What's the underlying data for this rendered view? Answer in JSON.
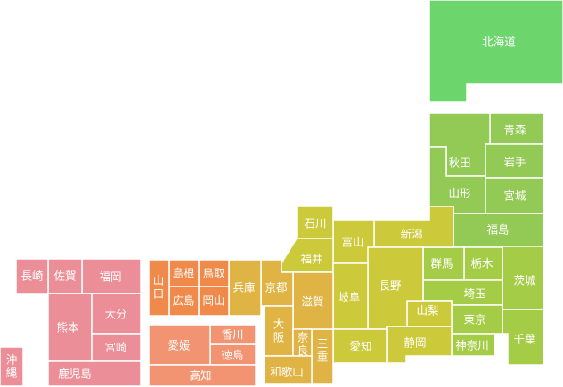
{
  "colors": {
    "hokkaido": "#6cd56c",
    "tohoku": "#93c955",
    "kanto": "#a4cc46",
    "chubu": "#ccc93a",
    "kinki": "#dfb445",
    "chugoku": "#ef8a4a",
    "shikoku": "#f29372",
    "kyushu": "#ec8e97"
  },
  "prefectures": [
    {
      "id": "hokkaido",
      "name": "北海道",
      "region": "hokkaido"
    },
    {
      "id": "aomori",
      "name": "青森",
      "region": "tohoku"
    },
    {
      "id": "akita",
      "name": "秋田",
      "region": "tohoku"
    },
    {
      "id": "iwate",
      "name": "岩手",
      "region": "tohoku"
    },
    {
      "id": "yamagata",
      "name": "山形",
      "region": "tohoku"
    },
    {
      "id": "miyagi",
      "name": "宮城",
      "region": "tohoku"
    },
    {
      "id": "fukushima",
      "name": "福島",
      "region": "tohoku"
    },
    {
      "id": "ibaraki",
      "name": "茨城",
      "region": "kanto"
    },
    {
      "id": "tochigi",
      "name": "栃木",
      "region": "kanto"
    },
    {
      "id": "gunma",
      "name": "群馬",
      "region": "kanto"
    },
    {
      "id": "saitama",
      "name": "埼玉",
      "region": "kanto"
    },
    {
      "id": "chiba",
      "name": "千葉",
      "region": "kanto"
    },
    {
      "id": "tokyo",
      "name": "東京",
      "region": "kanto"
    },
    {
      "id": "kanagawa",
      "name": "神奈川",
      "region": "kanto"
    },
    {
      "id": "niigata",
      "name": "新潟",
      "region": "chubu"
    },
    {
      "id": "toyama",
      "name": "富山",
      "region": "chubu"
    },
    {
      "id": "ishikawa",
      "name": "石川",
      "region": "chubu"
    },
    {
      "id": "fukui",
      "name": "福井",
      "region": "chubu"
    },
    {
      "id": "yamanashi",
      "name": "山梨",
      "region": "chubu"
    },
    {
      "id": "nagano",
      "name": "長野",
      "region": "chubu"
    },
    {
      "id": "gifu",
      "name": "岐阜",
      "region": "chubu"
    },
    {
      "id": "shizuoka",
      "name": "静岡",
      "region": "chubu"
    },
    {
      "id": "aichi",
      "name": "愛知",
      "region": "chubu"
    },
    {
      "id": "mie",
      "name": "三重",
      "region": "kinki"
    },
    {
      "id": "shiga",
      "name": "滋賀",
      "region": "kinki"
    },
    {
      "id": "kyoto",
      "name": "京都",
      "region": "kinki"
    },
    {
      "id": "osaka",
      "name": "大阪",
      "region": "kinki"
    },
    {
      "id": "hyogo",
      "name": "兵庫",
      "region": "kinki"
    },
    {
      "id": "nara",
      "name": "奈良",
      "region": "kinki"
    },
    {
      "id": "wakayama",
      "name": "和歌山",
      "region": "kinki"
    },
    {
      "id": "tottori",
      "name": "鳥取",
      "region": "chugoku"
    },
    {
      "id": "shimane",
      "name": "島根",
      "region": "chugoku"
    },
    {
      "id": "okayama",
      "name": "岡山",
      "region": "chugoku"
    },
    {
      "id": "hiroshima",
      "name": "広島",
      "region": "chugoku"
    },
    {
      "id": "yamaguchi",
      "name": "山口",
      "region": "chugoku"
    },
    {
      "id": "tokushima",
      "name": "徳島",
      "region": "shikoku"
    },
    {
      "id": "kagawa",
      "name": "香川",
      "region": "shikoku"
    },
    {
      "id": "ehime",
      "name": "愛媛",
      "region": "shikoku"
    },
    {
      "id": "kochi",
      "name": "高知",
      "region": "shikoku"
    },
    {
      "id": "fukuoka",
      "name": "福岡",
      "region": "kyushu"
    },
    {
      "id": "saga",
      "name": "佐賀",
      "region": "kyushu"
    },
    {
      "id": "nagasaki",
      "name": "長崎",
      "region": "kyushu"
    },
    {
      "id": "kumamoto",
      "name": "熊本",
      "region": "kyushu"
    },
    {
      "id": "oita",
      "name": "大分",
      "region": "kyushu"
    },
    {
      "id": "miyazaki",
      "name": "宮崎",
      "region": "kyushu"
    },
    {
      "id": "kagoshima",
      "name": "鹿児島",
      "region": "kyushu"
    },
    {
      "id": "okinawa",
      "name": "沖縄",
      "region": "kyushu"
    }
  ]
}
